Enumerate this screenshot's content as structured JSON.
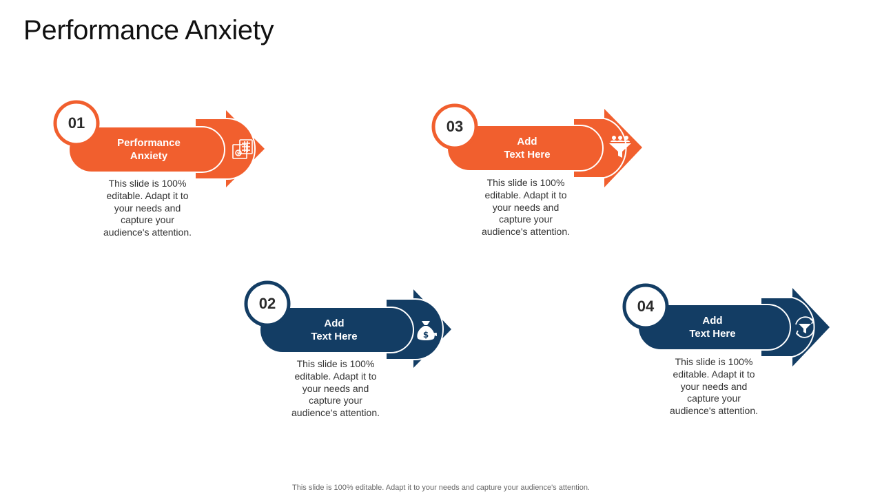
{
  "title": "Performance Anxiety",
  "colors": {
    "orange": "#F15F2E",
    "navy": "#133D64"
  },
  "steps": [
    {
      "number": "01",
      "label_lines": [
        "Performance",
        "Anxiety"
      ],
      "icon": "calculator-icon",
      "desc_lines": [
        "This slide is 100%",
        "editable. Adapt it to",
        "your needs and",
        "capture your",
        "audience's attention."
      ]
    },
    {
      "number": "02",
      "label_lines": [
        "Add",
        "Text Here"
      ],
      "icon": "money-bag-icon",
      "desc_lines": [
        "This slide is 100%",
        "editable. Adapt it to",
        "your needs and",
        "capture your",
        "audience's attention."
      ]
    },
    {
      "number": "03",
      "label_lines": [
        "Add",
        "Text Here"
      ],
      "icon": "funnel-people-icon",
      "desc_lines": [
        "This slide is 100%",
        "editable. Adapt it to",
        "your needs and",
        "capture your",
        "audience's attention."
      ]
    },
    {
      "number": "04",
      "label_lines": [
        "Add",
        "Text Here"
      ],
      "icon": "funnel-cycle-icon",
      "desc_lines": [
        "This slide is 100%",
        "editable. Adapt it to",
        "your needs and",
        "capture your",
        "audience's attention."
      ]
    }
  ],
  "footer": "This slide is 100% editable. Adapt it to your needs and capture your audience's attention."
}
